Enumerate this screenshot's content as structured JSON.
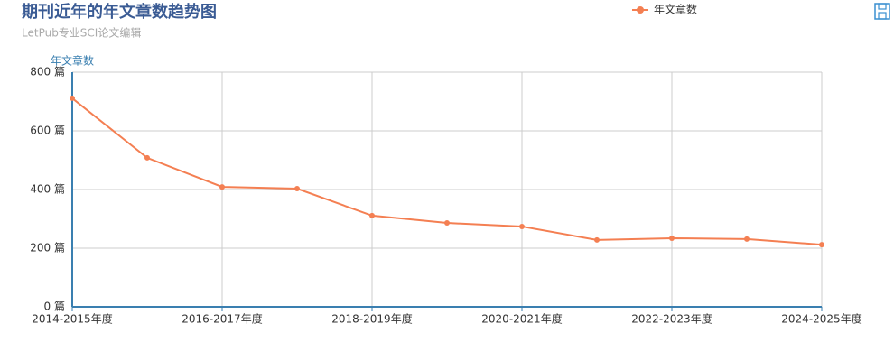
{
  "chart_data": {
    "type": "line",
    "title": "期刊近年的年文章数趋势图",
    "subtitle": "LetPub专业SCI论文编辑",
    "y_label": "年文章数",
    "categories": [
      "2014-2015年度",
      null,
      "2016-2017年度",
      null,
      "2018-2019年度",
      null,
      "2020-2021年度",
      null,
      "2022-2023年度",
      null,
      "2024-2025年度"
    ],
    "series": [
      {
        "name": "年文章数",
        "color": "#f47f52",
        "values": [
          711,
          508,
          409,
          403,
          311,
          286,
          274,
          228,
          234,
          231,
          212
        ]
      }
    ],
    "ylim": [
      0,
      800
    ],
    "yticks": [
      {
        "value": 0,
        "label": "0 篇"
      },
      {
        "value": 200,
        "label": "200 篇"
      },
      {
        "value": 400,
        "label": "400 篇"
      },
      {
        "value": 600,
        "label": "600 篇"
      },
      {
        "value": 800,
        "label": "800 篇"
      }
    ],
    "grid": true
  }
}
